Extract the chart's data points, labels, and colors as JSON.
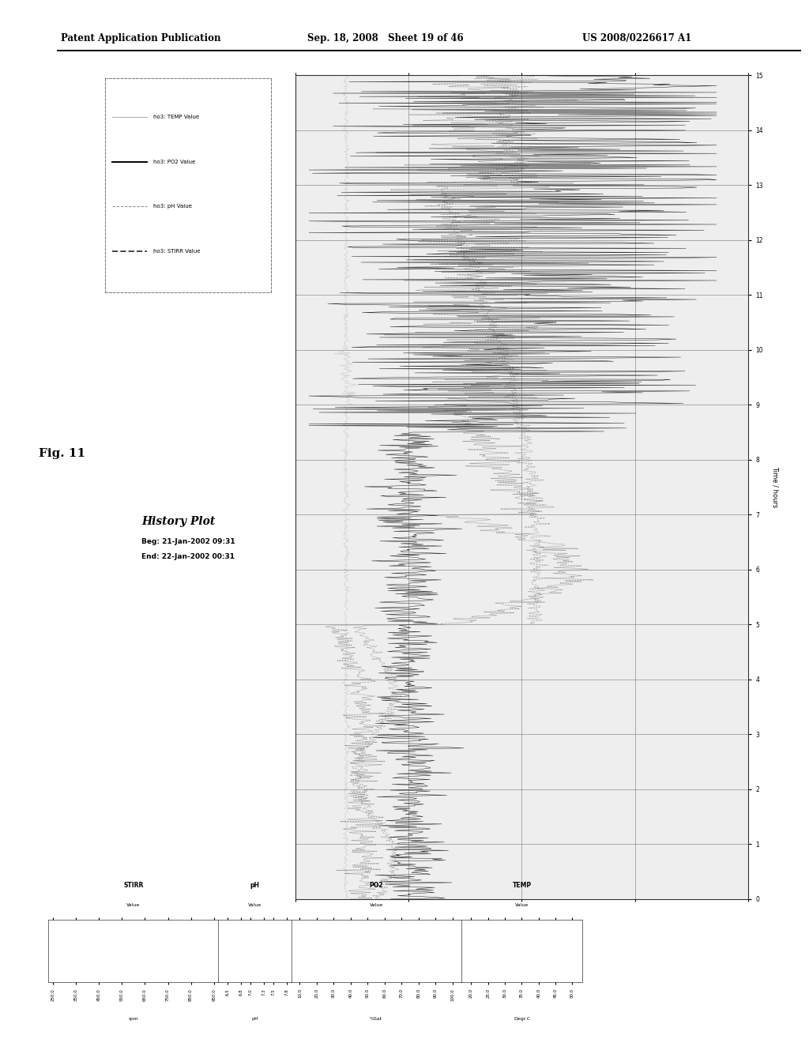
{
  "title": "History Plot",
  "subtitle_beg": "Beg: 21-Jan-2002 09:31",
  "subtitle_end": "End: 22-Jan-2002 00:31",
  "fig_label": "Fig. 11",
  "patent_header_left": "Patent Application Publication",
  "patent_header_mid": "Sep. 18, 2008   Sheet 19 of 46",
  "patent_header_right": "US 2008/0226617 A1",
  "legend_entries": [
    {
      "label": "ho3: TEMP Value",
      "linestyle": "-",
      "lw": 0.7,
      "color": "#aaaaaa"
    },
    {
      "label": "ho3: PO2 Value",
      "linestyle": "-",
      "lw": 1.4,
      "color": "#000000"
    },
    {
      "label": "ho3: pH Value",
      "linestyle": "--",
      "lw": 0.7,
      "color": "#888888"
    },
    {
      "label": "ho3: STIRR Value",
      "linestyle": "--",
      "lw": 1.4,
      "color": "#444444"
    }
  ],
  "time_axis_label": "Time / hours",
  "time_axis_min": 0.0,
  "time_axis_max": 15.0,
  "background_color": "#ffffff",
  "plot_bg_color": "#eeeeee",
  "stirr_ticks": [
    250.0,
    350.0,
    450.0,
    550.0,
    650.0,
    750.0,
    850.0,
    950.0
  ],
  "ph_ticks": [
    6.5,
    6.8,
    7.0,
    7.3,
    7.5,
    7.8
  ],
  "po2_ticks": [
    10.0,
    20.0,
    30.0,
    40.0,
    50.0,
    60.0,
    70.0,
    80.0,
    90.0,
    100.0
  ],
  "temp_ticks": [
    20.0,
    25.0,
    30.0,
    35.0,
    40.0,
    45.0,
    50.0
  ]
}
